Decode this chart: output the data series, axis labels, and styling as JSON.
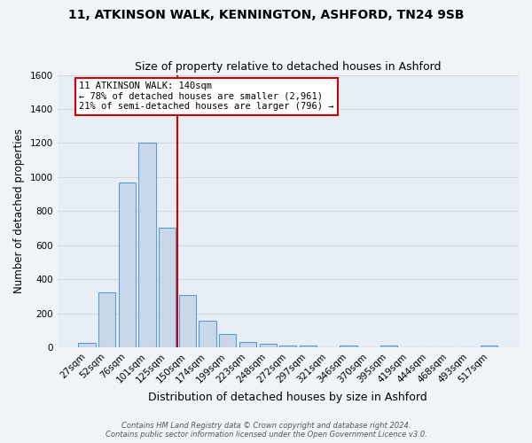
{
  "title1": "11, ATKINSON WALK, KENNINGTON, ASHFORD, TN24 9SB",
  "title2": "Size of property relative to detached houses in Ashford",
  "xlabel": "Distribution of detached houses by size in Ashford",
  "ylabel": "Number of detached properties",
  "bar_labels": [
    "27sqm",
    "52sqm",
    "76sqm",
    "101sqm",
    "125sqm",
    "150sqm",
    "174sqm",
    "199sqm",
    "223sqm",
    "248sqm",
    "272sqm",
    "297sqm",
    "321sqm",
    "346sqm",
    "370sqm",
    "395sqm",
    "419sqm",
    "444sqm",
    "468sqm",
    "493sqm",
    "517sqm"
  ],
  "bar_values": [
    25,
    325,
    970,
    1200,
    700,
    305,
    155,
    80,
    30,
    20,
    12,
    10,
    0,
    10,
    0,
    12,
    0,
    0,
    0,
    0,
    10
  ],
  "bar_color": "#c8d8e8",
  "bar_edge_color": "#5b9bd5",
  "bg_color": "#e8eef5",
  "grid_color": "#d0d8e0",
  "vline_x": 4.5,
  "vline_color": "#cc0000",
  "annotation_text": "11 ATKINSON WALK: 140sqm\n← 78% of detached houses are smaller (2,961)\n21% of semi-detached houses are larger (796) →",
  "annotation_box_color": "#ffffff",
  "annotation_box_edge": "#cc0000",
  "footer_text": "Contains HM Land Registry data © Crown copyright and database right 2024.\nContains public sector information licensed under the Open Government Licence v3.0.",
  "ylim": [
    0,
    1600
  ],
  "yticks": [
    0,
    200,
    400,
    600,
    800,
    1000,
    1200,
    1400,
    1600
  ],
  "fig_bg": "#f0f4f8"
}
